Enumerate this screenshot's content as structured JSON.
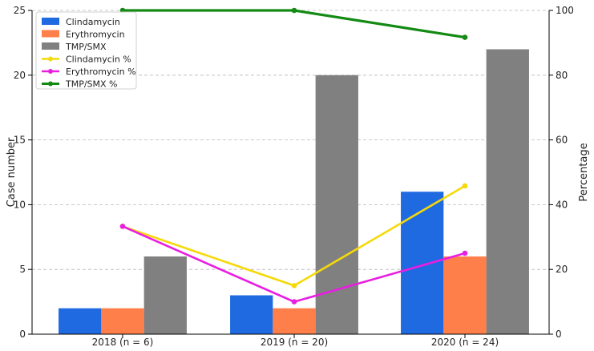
{
  "chart_data": {
    "type": "bar",
    "categories": [
      "2018 (n = 6)",
      "2019 (n = 20)",
      "2020 (n = 24)"
    ],
    "series": [
      {
        "name": "Clindamycin",
        "kind": "bar",
        "axis": "left",
        "color": "#1f6ae0",
        "values": [
          2,
          3,
          11
        ]
      },
      {
        "name": "Erythromycin",
        "kind": "bar",
        "axis": "left",
        "color": "#ff7f4a",
        "values": [
          2,
          2,
          6
        ]
      },
      {
        "name": "TMP/SMX",
        "kind": "bar",
        "axis": "left",
        "color": "#808080",
        "values": [
          6,
          20,
          22
        ]
      },
      {
        "name": "Clindamycin %",
        "kind": "line",
        "axis": "right",
        "color": "#f5d90a",
        "values": [
          33.3,
          15,
          45.8
        ]
      },
      {
        "name": "Erythromycin %",
        "kind": "line",
        "axis": "right",
        "color": "#e91ee0",
        "values": [
          33.3,
          10,
          25
        ]
      },
      {
        "name": "TMP/SMX %",
        "kind": "line",
        "axis": "right",
        "color": "#138a13",
        "values": [
          100,
          100,
          91.7
        ]
      }
    ],
    "ylabel": "Case number",
    "ylabel_right": "Percentage",
    "ylim": [
      0,
      25
    ],
    "ylim_right": [
      0,
      100
    ],
    "yticks": [
      0,
      5,
      10,
      15,
      20,
      25
    ],
    "yticks_right": [
      0,
      20,
      40,
      60,
      80,
      100
    ],
    "grid": "horizontal dashed",
    "legend_position": "top-left"
  }
}
